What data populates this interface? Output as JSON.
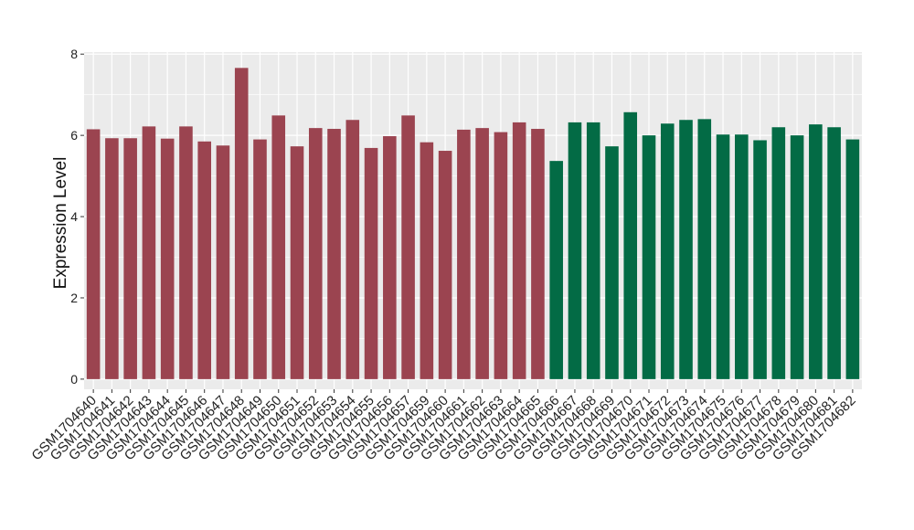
{
  "colors": {
    "panel_background": "#EBEBEB",
    "grid_major": "#FFFFFF",
    "group_1_bar": "#9B4450",
    "group_2_bar": "#036B45"
  },
  "chart_data": {
    "type": "bar",
    "title": "",
    "xlabel": "",
    "ylabel": "Expression Level",
    "ylim": [
      -0.25,
      8.05
    ],
    "yticks": [
      0,
      2,
      4,
      6,
      8
    ],
    "grid": true,
    "legend": "none",
    "categories": [
      "GSM1704640",
      "GSM1704641",
      "GSM1704642",
      "GSM1704643",
      "GSM1704644",
      "GSM1704645",
      "GSM1704646",
      "GSM1704647",
      "GSM1704648",
      "GSM1704649",
      "GSM1704650",
      "GSM1704651",
      "GSM1704652",
      "GSM1704653",
      "GSM1704654",
      "GSM1704655",
      "GSM1704656",
      "GSM1704657",
      "GSM1704659",
      "GSM1704660",
      "GSM1704661",
      "GSM1704662",
      "GSM1704663",
      "GSM1704664",
      "GSM1704665",
      "GSM1704666",
      "GSM1704667",
      "GSM1704668",
      "GSM1704669",
      "GSM1704670",
      "GSM1704671",
      "GSM1704672",
      "GSM1704673",
      "GSM1704674",
      "GSM1704675",
      "GSM1704676",
      "GSM1704677",
      "GSM1704678",
      "GSM1704679",
      "GSM1704680",
      "GSM1704681",
      "GSM1704682"
    ],
    "values": [
      6.15,
      5.93,
      5.93,
      6.22,
      5.92,
      6.22,
      5.85,
      5.75,
      7.66,
      5.9,
      6.49,
      5.73,
      6.18,
      6.16,
      6.38,
      5.69,
      5.98,
      6.49,
      5.83,
      5.62,
      6.14,
      6.18,
      6.08,
      6.32,
      6.16,
      5.37,
      6.32,
      6.32,
      5.73,
      6.57,
      6.0,
      6.29,
      6.38,
      6.4,
      6.02,
      6.02,
      5.88,
      6.2,
      6.0,
      6.27,
      6.2,
      5.9
    ],
    "bar_colors": [
      "#9B4450",
      "#9B4450",
      "#9B4450",
      "#9B4450",
      "#9B4450",
      "#9B4450",
      "#9B4450",
      "#9B4450",
      "#9B4450",
      "#9B4450",
      "#9B4450",
      "#9B4450",
      "#9B4450",
      "#9B4450",
      "#9B4450",
      "#9B4450",
      "#9B4450",
      "#9B4450",
      "#9B4450",
      "#9B4450",
      "#9B4450",
      "#9B4450",
      "#9B4450",
      "#9B4450",
      "#9B4450",
      "#036B45",
      "#036B45",
      "#036B45",
      "#036B45",
      "#036B45",
      "#036B45",
      "#036B45",
      "#036B45",
      "#036B45",
      "#036B45",
      "#036B45",
      "#036B45",
      "#036B45",
      "#036B45",
      "#036B45",
      "#036B45",
      "#036B45"
    ]
  }
}
